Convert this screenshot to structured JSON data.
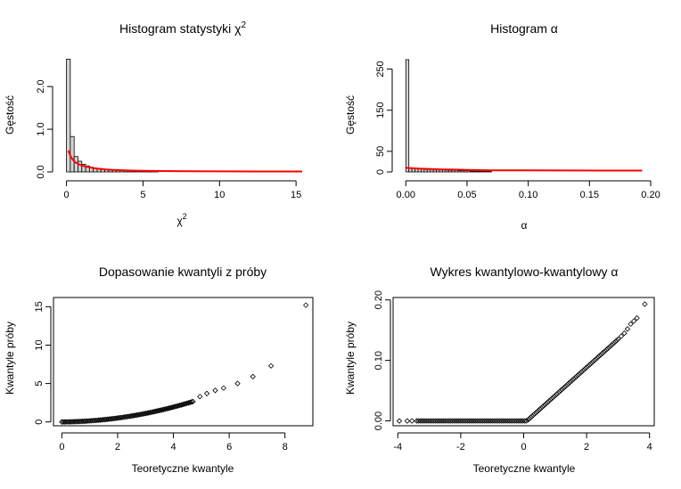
{
  "chart_data": [
    {
      "type": "bar",
      "title": "Histogram statystyki χ",
      "title_sup": "2",
      "xlabel": "χ",
      "xlabel_sup": "2",
      "ylabel": "Gęstość",
      "xlim": [
        -0.5,
        15.4
      ],
      "ylim": [
        0,
        2.65
      ],
      "xticks": [
        0,
        5,
        10,
        15
      ],
      "xtick_labels": [
        "0",
        "5",
        "10",
        "15"
      ],
      "yticks": [
        0,
        1,
        2
      ],
      "ytick_labels": [
        "0.0",
        "1.0",
        "2.0"
      ],
      "bins": {
        "start": 0,
        "width": 0.25,
        "densities": [
          2.64,
          0.83,
          0.36,
          0.25,
          0.18,
          0.14,
          0.11,
          0.09,
          0.08,
          0.07,
          0.06,
          0.05,
          0.045,
          0.04,
          0.035,
          0.03,
          0.028,
          0.025,
          0.022,
          0.02,
          0.018,
          0.016,
          0.015,
          0.014
        ]
      },
      "density_curve": {
        "color": "#ff0000",
        "x": [
          0.12,
          0.25,
          0.4,
          0.6,
          0.8,
          1.0,
          1.3,
          1.6,
          2.0,
          2.5,
          3.0,
          4.0,
          5.0,
          6.0,
          8.0,
          10.0,
          12.0,
          15.4
        ],
        "y": [
          0.5,
          0.38,
          0.29,
          0.22,
          0.18,
          0.15,
          0.12,
          0.1,
          0.08,
          0.06,
          0.048,
          0.034,
          0.026,
          0.021,
          0.016,
          0.013,
          0.011,
          0.01
        ]
      }
    },
    {
      "type": "bar",
      "title": "Histogram α",
      "xlabel": "α",
      "ylabel": "Gęstość",
      "xlim": [
        -0.006,
        0.2
      ],
      "ylim": [
        0,
        275
      ],
      "xticks": [
        0,
        0.05,
        0.1,
        0.15,
        0.2
      ],
      "xtick_labels": [
        "0.00",
        "0.05",
        "0.10",
        "0.15",
        "0.20"
      ],
      "yticks": [
        0,
        50,
        150,
        250
      ],
      "ytick_labels": [
        "0",
        "50",
        "150",
        "250"
      ],
      "bins": {
        "start": 0,
        "width": 0.0025,
        "densities": [
          273,
          9,
          9,
          8,
          7,
          7,
          6,
          6,
          6,
          5,
          5,
          5,
          5,
          4,
          4,
          4,
          4,
          3,
          3,
          3,
          3,
          2,
          2,
          2,
          2,
          2,
          2,
          1
        ]
      },
      "density_curve": {
        "color": "#ff0000",
        "x": [
          0,
          0.01,
          0.02,
          0.03,
          0.05,
          0.07,
          0.1,
          0.13,
          0.16,
          0.193
        ],
        "y": [
          10,
          8,
          7,
          6,
          5,
          4,
          3.6,
          3.4,
          3.3,
          3.2
        ]
      }
    },
    {
      "type": "scatter",
      "title": "Dopasowanie kwantyli z próby",
      "xlabel": "Teoretyczne kwantyle",
      "ylabel": "Kwantyle próby",
      "xlim": [
        -0.3,
        9.0
      ],
      "ylim": [
        -0.5,
        16.2
      ],
      "xticks": [
        0,
        2,
        4,
        6,
        8
      ],
      "xtick_labels": [
        "0",
        "2",
        "4",
        "6",
        "8"
      ],
      "yticks": [
        0,
        5,
        10,
        15
      ],
      "ytick_labels": [
        "0",
        "5",
        "10",
        "15"
      ],
      "points_model": "chi2_1_vs_chi2_1",
      "x_max": 4.7,
      "n_dense": 90,
      "extra_points": [
        {
          "x": 4.95,
          "y": 3.3
        },
        {
          "x": 5.2,
          "y": 3.7
        },
        {
          "x": 5.5,
          "y": 4.1
        },
        {
          "x": 5.8,
          "y": 4.4
        },
        {
          "x": 6.3,
          "y": 5.0
        },
        {
          "x": 6.85,
          "y": 5.9
        },
        {
          "x": 7.5,
          "y": 7.3
        },
        {
          "x": 8.75,
          "y": 15.2
        }
      ]
    },
    {
      "type": "scatter",
      "title": "Wykres kwantylowo-kwantylowy α",
      "xlabel": "Teoretyczne kwantyle",
      "ylabel": "Kwantyle próby",
      "xlim": [
        -4.15,
        4.15
      ],
      "ylim": [
        -0.008,
        0.204
      ],
      "xticks": [
        -4,
        -2,
        0,
        2,
        4
      ],
      "xtick_labels": [
        "-4",
        "-2",
        "0",
        "2",
        "4"
      ],
      "yticks": [
        0,
        0.1,
        0.2
      ],
      "ytick_labels": [
        "0.00",
        "0.10",
        "0.20"
      ],
      "points_model": "zero_then_linear",
      "flat_from": -3.4,
      "flat_to": 0.1,
      "slope_end_x": 3.0,
      "slope_end_y": 0.135,
      "extra_points": [
        {
          "x": -3.95,
          "y": 0
        },
        {
          "x": -3.7,
          "y": 0
        },
        {
          "x": -3.55,
          "y": 0
        },
        {
          "x": 3.1,
          "y": 0.14
        },
        {
          "x": 3.2,
          "y": 0.145
        },
        {
          "x": 3.3,
          "y": 0.152
        },
        {
          "x": 3.4,
          "y": 0.16
        },
        {
          "x": 3.5,
          "y": 0.165
        },
        {
          "x": 3.6,
          "y": 0.17
        },
        {
          "x": 3.85,
          "y": 0.193
        }
      ]
    }
  ]
}
